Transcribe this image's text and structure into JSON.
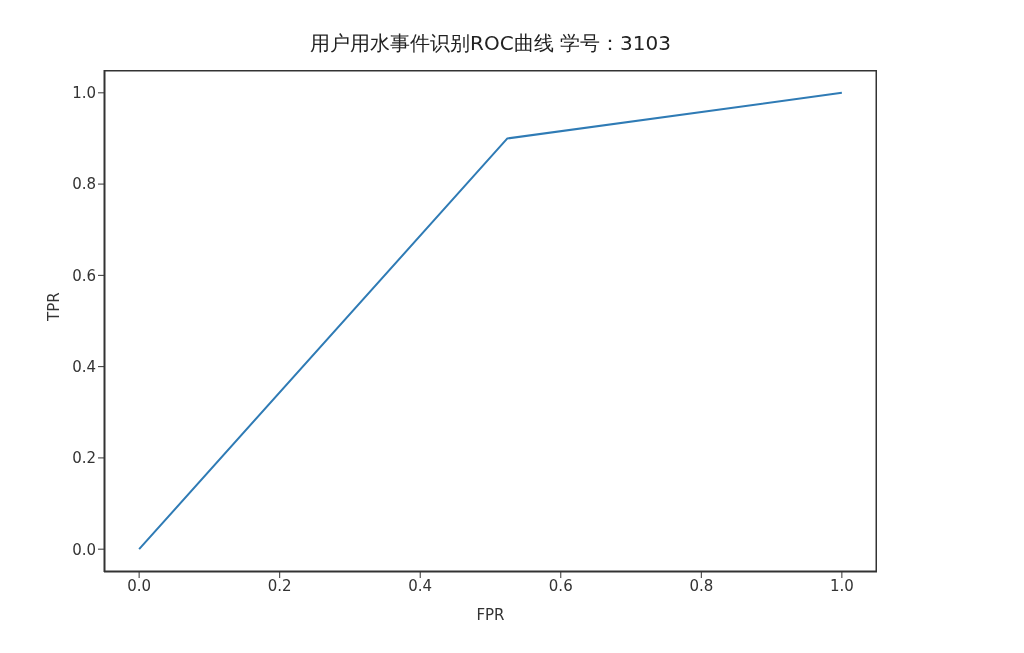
{
  "chart_data": {
    "type": "line",
    "title": "用户用水事件识别ROC曲线 学号：3103",
    "xlabel": "FPR",
    "ylabel": "TPR",
    "x": [
      0,
      0.524,
      1
    ],
    "series": [
      {
        "color": "#2f7bb5",
        "values": [
          0,
          0.9,
          1
        ]
      }
    ],
    "xlim": [
      -0.05,
      1.05
    ],
    "ylim": [
      -0.05,
      1.05
    ],
    "xticks": [
      {
        "value": 0,
        "label": "0.0"
      },
      {
        "value": 0.2,
        "label": "0.2"
      },
      {
        "value": 0.4,
        "label": "0.4"
      },
      {
        "value": 0.6,
        "label": "0.6"
      },
      {
        "value": 0.8,
        "label": "0.8"
      },
      {
        "value": 1,
        "label": "1.0"
      }
    ],
    "yticks": [
      {
        "value": 0,
        "label": "0.0"
      },
      {
        "value": 0.2,
        "label": "0.2"
      },
      {
        "value": 0.4,
        "label": "0.4"
      },
      {
        "value": 0.6,
        "label": "0.6"
      },
      {
        "value": 0.8,
        "label": "0.8"
      },
      {
        "value": 1,
        "label": "1.0"
      }
    ],
    "grid": false,
    "legend": false,
    "marker": "none",
    "line_style": "solid"
  }
}
